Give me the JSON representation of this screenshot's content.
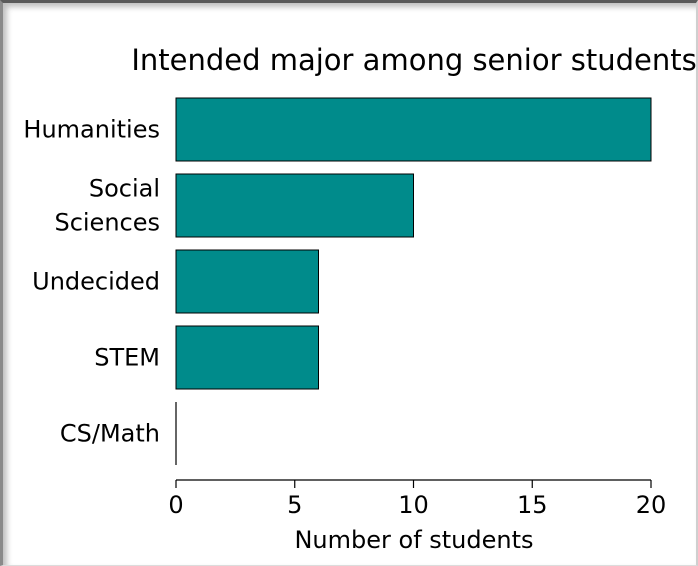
{
  "chart_data": {
    "type": "bar",
    "orientation": "horizontal",
    "title": "Intended major among senior students",
    "xlabel": "Number of students",
    "ylabel": "",
    "categories": [
      [
        "Humanities"
      ],
      [
        "Social",
        "Sciences"
      ],
      [
        "Undecided"
      ],
      [
        "STEM"
      ],
      [
        "CS/Math"
      ]
    ],
    "values": [
      20,
      10,
      6,
      6,
      0
    ],
    "xlim": [
      0,
      20
    ],
    "xticks": [
      0,
      5,
      10,
      15,
      20
    ],
    "bar_color": "#008b8b",
    "grid": false,
    "legend": "none"
  }
}
